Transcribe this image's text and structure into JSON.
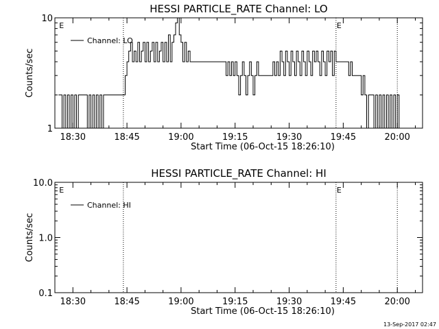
{
  "chart_data": [
    {
      "type": "line",
      "title": "HESSI PARTICLE_RATE Channel: LO",
      "xlabel": "Start Time (06-Oct-15 18:26:10)",
      "ylabel": "Counts/sec",
      "y_scale": "log",
      "ylim": [
        1,
        10
      ],
      "xlim": [
        "18:25",
        "20:07"
      ],
      "x_ticks": [
        "18:30",
        "18:45",
        "19:00",
        "19:15",
        "19:30",
        "19:45",
        "20:00"
      ],
      "y_ticks": [
        "1",
        "10"
      ],
      "legend": {
        "label": "Channel: LO",
        "placement": "top-left"
      },
      "markers": [
        {
          "time": "18:26",
          "label": "E"
        },
        {
          "time": "19:43",
          "label": "E"
        }
      ],
      "vlines": [
        "18:44",
        "19:43",
        "20:00"
      ],
      "grid": false,
      "series": [
        {
          "name": "Channel: LO",
          "x": [
            "18:26",
            "18:27",
            "18:27.5",
            "18:28",
            "18:28.5",
            "18:29",
            "18:29.5",
            "18:30",
            "18:30.5",
            "18:31",
            "18:31.5",
            "18:32",
            "18:33",
            "18:34",
            "18:34.5",
            "18:35",
            "18:35.5",
            "18:36",
            "18:36.5",
            "18:37",
            "18:37.5",
            "18:38",
            "18:38.5",
            "18:39",
            "18:40",
            "18:41",
            "18:42",
            "18:43",
            "18:44",
            "18:44.5",
            "18:45",
            "18:45.5",
            "18:46",
            "18:46.5",
            "18:47",
            "18:47.5",
            "18:48",
            "18:48.5",
            "18:49",
            "18:49.5",
            "18:50",
            "18:50.5",
            "18:51",
            "18:51.5",
            "18:52",
            "18:52.5",
            "18:53",
            "18:53.5",
            "18:54",
            "18:54.5",
            "18:55",
            "18:55.5",
            "18:56",
            "18:56.5",
            "18:57",
            "18:57.5",
            "18:58",
            "18:58.5",
            "18:59",
            "18:59.5",
            "19:00",
            "19:00.5",
            "19:01",
            "19:01.5",
            "19:02",
            "19:02.5",
            "19:03",
            "19:04",
            "19:05",
            "19:06",
            "19:07",
            "19:08",
            "19:09",
            "19:10",
            "19:11",
            "19:12",
            "19:12.5",
            "19:13",
            "19:13.5",
            "19:14",
            "19:14.5",
            "19:15",
            "19:15.5",
            "19:16",
            "19:16.5",
            "19:17",
            "19:17.5",
            "19:18",
            "19:18.5",
            "19:19",
            "19:19.5",
            "19:20",
            "19:20.5",
            "19:21",
            "19:21.5",
            "19:22",
            "19:23",
            "19:24",
            "19:25",
            "19:25.5",
            "19:26",
            "19:26.5",
            "19:27",
            "19:27.5",
            "19:28",
            "19:28.5",
            "19:29",
            "19:29.5",
            "19:30",
            "19:30.5",
            "19:31",
            "19:31.5",
            "19:32",
            "19:32.5",
            "19:33",
            "19:33.5",
            "19:34",
            "19:34.5",
            "19:35",
            "19:35.5",
            "19:36",
            "19:36.5",
            "19:37",
            "19:37.5",
            "19:38",
            "19:38.5",
            "19:39",
            "19:39.5",
            "19:40",
            "19:40.5",
            "19:41",
            "19:41.5",
            "19:42",
            "19:42.5",
            "19:43",
            "19:44",
            "19:45",
            "19:46",
            "19:46.5",
            "19:47",
            "19:47.5",
            "19:48",
            "19:48.5",
            "19:49",
            "19:49.5",
            "19:50",
            "19:50.5",
            "19:51",
            "19:51.5",
            "19:52",
            "19:53",
            "19:53.5",
            "19:54",
            "19:54.5",
            "19:55",
            "19:55.5",
            "19:56",
            "19:56.5",
            "19:57",
            "19:57.5",
            "19:58",
            "19:58.5",
            "19:59",
            "19:59.5",
            "20:00",
            "20:00.5"
          ],
          "y": [
            2,
            1,
            2,
            1,
            2,
            1,
            2,
            1,
            2,
            1,
            2,
            2,
            2,
            1,
            2,
            1,
            2,
            1,
            2,
            1,
            2,
            1,
            2,
            2,
            2,
            2,
            2,
            2,
            2,
            3,
            4,
            5,
            6,
            4,
            5,
            4,
            6,
            4,
            5,
            6,
            4,
            6,
            4,
            5,
            6,
            4,
            6,
            4,
            5,
            6,
            4,
            6,
            4,
            7,
            4,
            6,
            7,
            9,
            10,
            7,
            6,
            4,
            6,
            4,
            5,
            4,
            4,
            4,
            4,
            4,
            4,
            4,
            4,
            4,
            4,
            4,
            3,
            4,
            3,
            4,
            3,
            4,
            3,
            2,
            3,
            4,
            3,
            2,
            3,
            4,
            3,
            2,
            3,
            4,
            3,
            3,
            3,
            3,
            3,
            4,
            3,
            4,
            3,
            5,
            4,
            3,
            5,
            4,
            3,
            5,
            4,
            3,
            5,
            4,
            3,
            5,
            4,
            3,
            5,
            4,
            3,
            5,
            4,
            5,
            4,
            3,
            5,
            4,
            3,
            5,
            4,
            5,
            3,
            5,
            4,
            4,
            4,
            4,
            3,
            4,
            3,
            3,
            3,
            3,
            3,
            2,
            3,
            2,
            1,
            2,
            2,
            1,
            2,
            1,
            2,
            1,
            2,
            1,
            2,
            1,
            2,
            1,
            2,
            1,
            2,
            1
          ]
        }
      ]
    },
    {
      "type": "line",
      "title": "HESSI PARTICLE_RATE Channel: HI",
      "xlabel": "Start Time (06-Oct-15 18:26:10)",
      "ylabel": "Counts/sec",
      "y_scale": "log",
      "ylim": [
        0.1,
        10
      ],
      "xlim": [
        "18:25",
        "20:07"
      ],
      "x_ticks": [
        "18:30",
        "18:45",
        "19:00",
        "19:15",
        "19:30",
        "19:45",
        "20:00"
      ],
      "y_ticks": [
        "0.1",
        "1.0",
        "10.0"
      ],
      "legend": {
        "label": "Channel: HI",
        "placement": "top-left"
      },
      "markers": [
        {
          "time": "18:26",
          "label": "E"
        },
        {
          "time": "19:43",
          "label": "E"
        }
      ],
      "vlines": [
        "18:44",
        "19:43",
        "20:00"
      ],
      "grid": false,
      "series": [
        {
          "name": "Channel: HI",
          "x": [],
          "y": []
        }
      ]
    }
  ],
  "timestamp": "13-Sep-2017 02:47"
}
